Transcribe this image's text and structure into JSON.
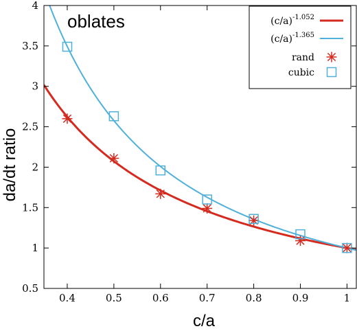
{
  "chart_data": {
    "type": "scatter",
    "title": "oblates",
    "xlabel": "c/a",
    "ylabel": "da/dt ratio",
    "xlim": [
      0.35,
      1.02
    ],
    "ylim": [
      0.5,
      4.0
    ],
    "x_ticks": [
      "0.4",
      "0.5",
      "0.6",
      "0.7",
      "0.8",
      "0.9",
      "1"
    ],
    "y_ticks": [
      "0.5",
      "1",
      "1.5",
      "2",
      "2.5",
      "3",
      "3.5",
      "4"
    ],
    "grid": false,
    "legend_position": "top-right",
    "series": [
      {
        "name": "(c/a)^-1.052",
        "legend_base": "(c/a)",
        "legend_exponent": "-1.052",
        "kind": "line",
        "exponent": -1.052,
        "color": "#d42a1f"
      },
      {
        "name": "(c/a)^-1.365",
        "legend_base": "(c/a)",
        "legend_exponent": "-1.365",
        "kind": "line",
        "exponent": -1.365,
        "color": "#4fb0d9"
      },
      {
        "name": "rand",
        "kind": "points",
        "marker": "star",
        "color": "#d42a1f",
        "x": [
          0.4,
          0.5,
          0.6,
          0.7,
          0.8,
          0.9,
          1.0
        ],
        "y": [
          2.6,
          2.11,
          1.67,
          1.49,
          1.34,
          1.09,
          1.0
        ]
      },
      {
        "name": "cubic",
        "kind": "points",
        "marker": "square",
        "color": "#4fb0d9",
        "x": [
          0.4,
          0.5,
          0.6,
          0.7,
          0.8,
          0.9,
          1.0
        ],
        "y": [
          3.49,
          2.63,
          1.96,
          1.6,
          1.36,
          1.17,
          1.0
        ]
      }
    ]
  }
}
